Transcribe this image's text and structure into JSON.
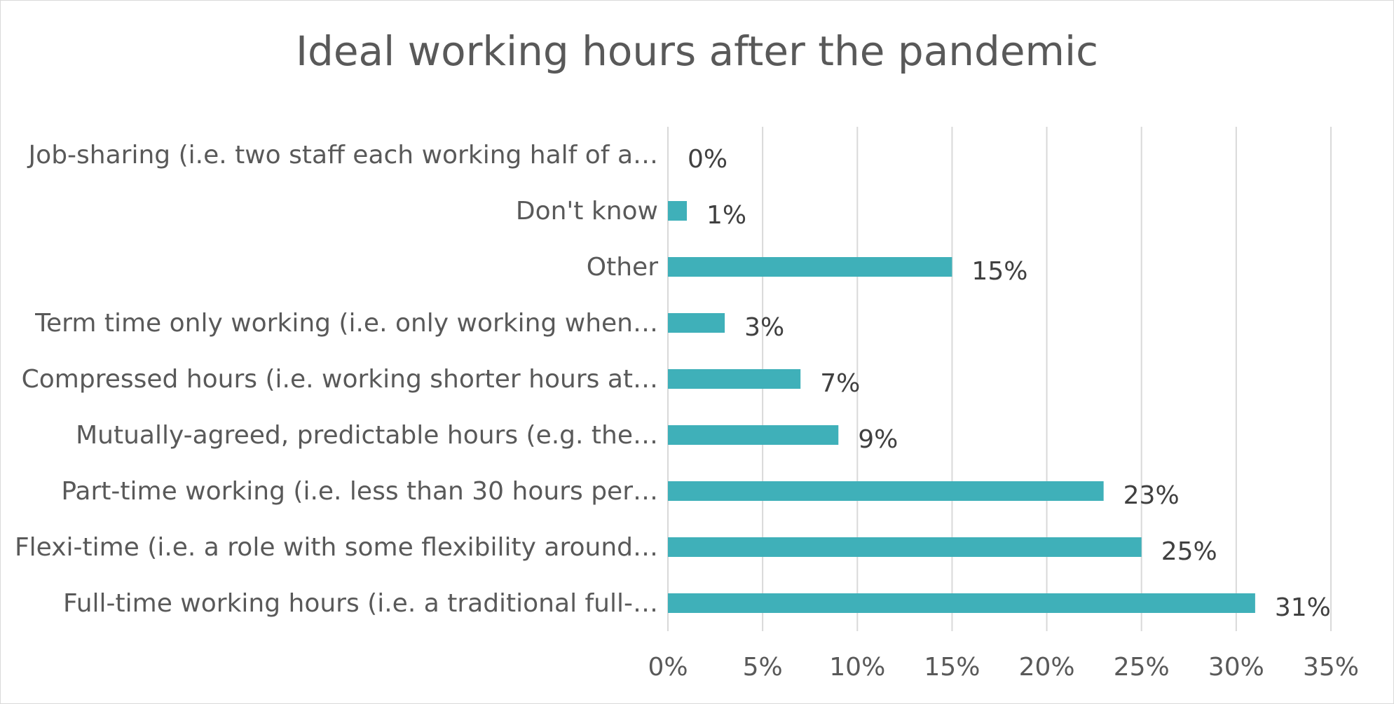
{
  "chart_data": {
    "type": "bar",
    "orientation": "horizontal",
    "title": "Ideal working hours after the pandemic",
    "categories": [
      "Full-time working hours (i.e. a traditional full-…",
      "Flexi-time (i.e. a role with some flexibility around…",
      "Part-time working (i.e. less than 30 hours per…",
      "Mutually-agreed, predictable hours (e.g. the…",
      "Compressed hours (i.e. working shorter hours at…",
      "Term time only working (i.e. only working when…",
      "Other",
      "Don't know",
      "Job-sharing (i.e. two staff each working half of a…"
    ],
    "values": [
      31,
      25,
      23,
      9,
      7,
      3,
      15,
      1,
      0
    ],
    "data_labels": [
      "31%",
      "25%",
      "23%",
      "9%",
      "7%",
      "3%",
      "15%",
      "1%",
      "0%"
    ],
    "xlim": [
      0,
      35
    ],
    "x_ticks": [
      0,
      5,
      10,
      15,
      20,
      25,
      30,
      35
    ],
    "x_tick_labels": [
      "0%",
      "5%",
      "10%",
      "15%",
      "20%",
      "25%",
      "30%",
      "35%"
    ],
    "xlabel": "",
    "ylabel": "",
    "grid": true,
    "legend": "none",
    "bar_color": "#3fb0b9",
    "grid_color": "#d9d9d9"
  }
}
